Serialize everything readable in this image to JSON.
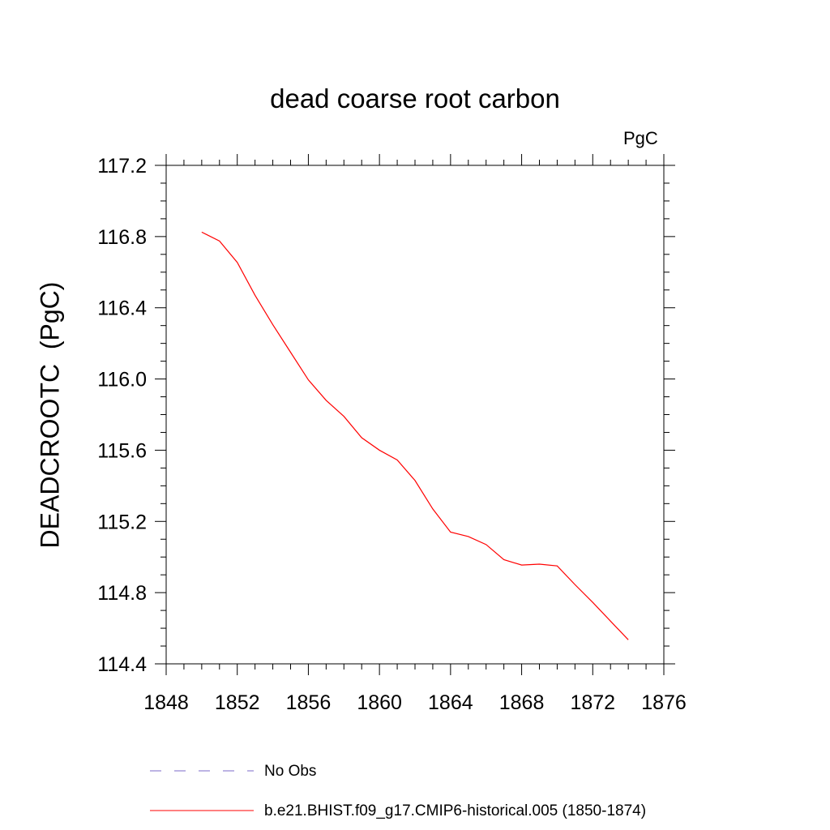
{
  "chart_data": {
    "type": "line",
    "title": "dead coarse root carbon",
    "units_label": "PgC",
    "ylabel": "DEADCROOTC  (PgC)",
    "xlim": [
      1848,
      1876
    ],
    "ylim": [
      114.4,
      117.2
    ],
    "xticks": [
      "1848",
      "1852",
      "1856",
      "1860",
      "1864",
      "1868",
      "1872",
      "1876"
    ],
    "yticks": [
      "114.4",
      "114.8",
      "115.2",
      "115.6",
      "116.0",
      "116.4",
      "116.8",
      "117.2"
    ],
    "grid": false,
    "legend_position": "bottom",
    "series": [
      {
        "name": "b.e21.BHIST.f09_g17.CMIP6-historical.005 (1850-1874)",
        "color": "#ff0000",
        "style": "solid",
        "x": [
          1850,
          1851,
          1852,
          1853,
          1854,
          1855,
          1856,
          1857,
          1858,
          1859,
          1860,
          1861,
          1862,
          1863,
          1864,
          1865,
          1866,
          1867,
          1868,
          1869,
          1870,
          1871,
          1872,
          1873,
          1874
        ],
        "y": [
          116.825,
          116.775,
          116.655,
          116.47,
          116.305,
          116.15,
          115.995,
          115.88,
          115.79,
          115.67,
          115.6,
          115.545,
          115.43,
          115.27,
          115.14,
          115.115,
          115.07,
          114.985,
          114.955,
          114.96,
          114.95,
          114.845,
          114.745,
          114.64,
          114.535
        ]
      }
    ],
    "legend": [
      {
        "label": "No Obs",
        "color": "#7b68c8",
        "style": "dashed"
      },
      {
        "label": "b.e21.BHIST.f09_g17.CMIP6-historical.005 (1850-1874)",
        "color": "#ff0000",
        "style": "solid"
      }
    ]
  }
}
